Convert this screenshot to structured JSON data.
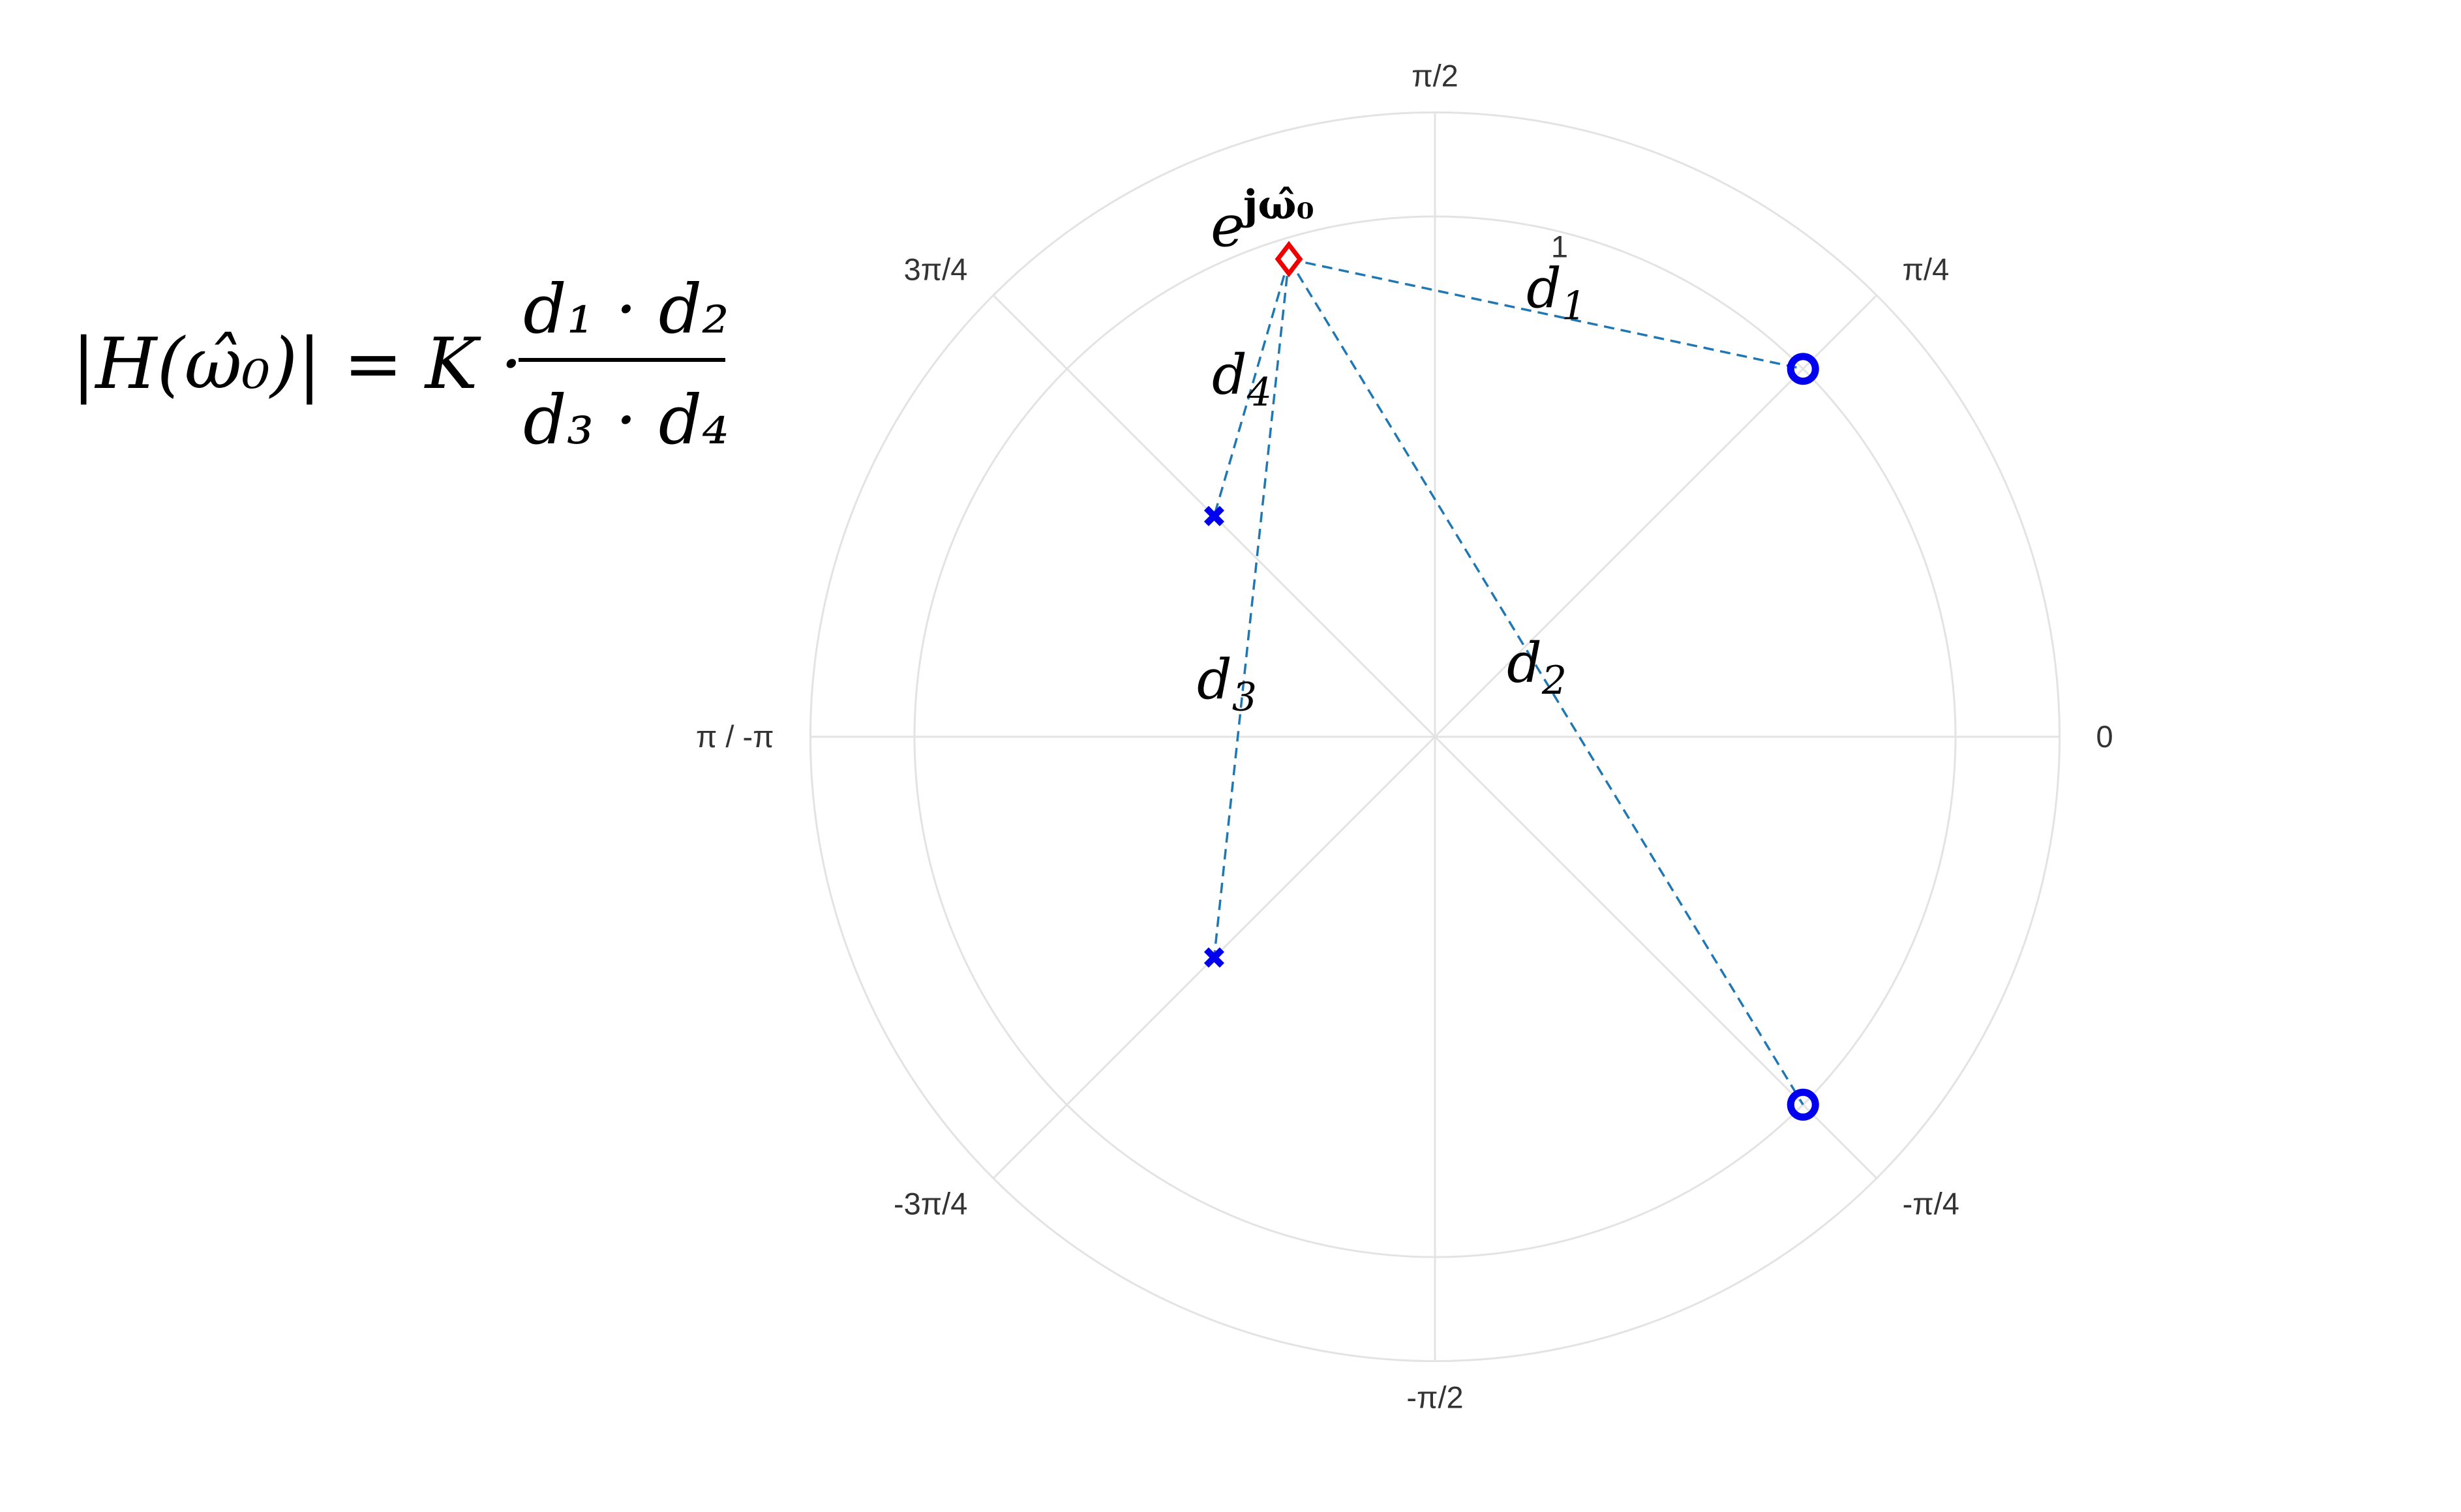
{
  "formula": {
    "lhs": "|H(ω̂₀)| = K ·",
    "numerator": "d₁ · d₂",
    "denominator": "d₃ · d₄"
  },
  "eval_point": {
    "label_base": "e",
    "label_exp": "jω̂₀",
    "r": 0.96,
    "theta_deg": 107
  },
  "zeros": [
    {
      "r": 1.0,
      "theta_deg": 45
    },
    {
      "r": 1.0,
      "theta_deg": -45
    }
  ],
  "poles": [
    {
      "r": 0.6,
      "theta_deg": 135
    },
    {
      "r": 0.6,
      "theta_deg": -135
    }
  ],
  "distances": [
    {
      "label_base": "d",
      "label_sub": "1",
      "to": "zero-0"
    },
    {
      "label_base": "d",
      "label_sub": "2",
      "to": "zero-1"
    },
    {
      "label_base": "d",
      "label_sub": "3",
      "to": "pole-1"
    },
    {
      "label_base": "d",
      "label_sub": "4",
      "to": "pole-0"
    }
  ],
  "polar_axis": {
    "radial_rings": [
      0.2,
      0.4,
      0.6,
      0.8,
      1.0,
      1.2
    ],
    "radial_tick_label": "1",
    "angle_labels": [
      {
        "deg": 0,
        "text": "0"
      },
      {
        "deg": 45,
        "text": "π/4"
      },
      {
        "deg": 90,
        "text": "π/2"
      },
      {
        "deg": 135,
        "text": "3π/4"
      },
      {
        "deg": 180,
        "text": "π / -π"
      },
      {
        "deg": -135,
        "text": "-3π/4"
      },
      {
        "deg": -90,
        "text": "-π/2"
      },
      {
        "deg": -45,
        "text": "-π/4"
      }
    ]
  },
  "colors": {
    "zero": "#0000ee",
    "pole": "#0000ee",
    "eval_point": "#ee0000",
    "distance_line": "#1f77b4",
    "grid": "#e3e3e3"
  }
}
